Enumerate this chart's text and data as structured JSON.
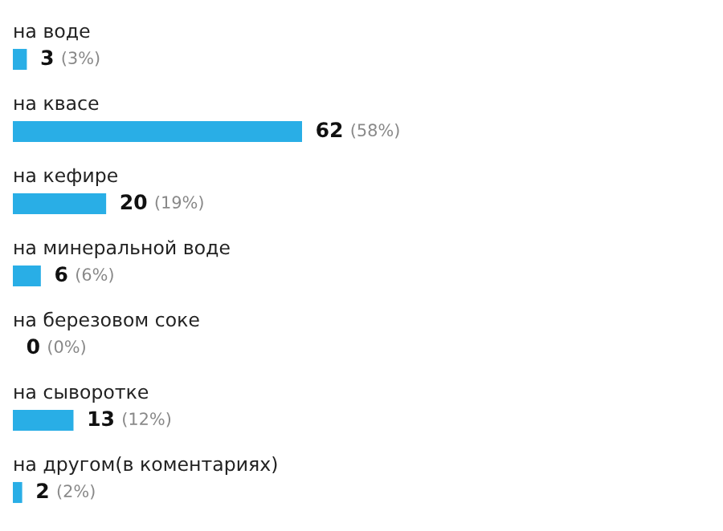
{
  "chart_data": {
    "type": "bar",
    "orientation": "horizontal",
    "categories": [
      "на воде",
      "на квасе",
      "на кефире",
      "на минеральной воде",
      "на березовом соке",
      "на сыворотке",
      "на другом(в коментариях)"
    ],
    "values": [
      3,
      62,
      20,
      6,
      0,
      13,
      2
    ],
    "value_labels": [
      "3 (3%)",
      "62 (58%)",
      "20 (19%)",
      "6 (6%)",
      "0 (0%)",
      "13 (12%)",
      "2 (2%)"
    ],
    "color": "#29aee6"
  }
}
